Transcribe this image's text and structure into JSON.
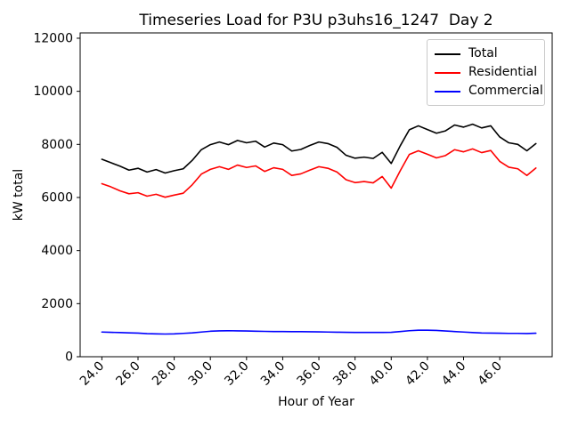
{
  "window": {
    "background": "#ffffff"
  },
  "chart_data": {
    "type": "line",
    "title": "Timeseries Load for P3U p3uhs16_1247  Day 2",
    "xlabel": "Hour of Year",
    "ylabel": "kW total",
    "xlim": [
      22.8,
      48.9
    ],
    "ylim": [
      0,
      12200
    ],
    "grid": false,
    "legend_position": "upper right",
    "xtick_values": [
      24,
      26,
      28,
      30,
      32,
      34,
      36,
      38,
      40,
      42,
      44,
      46
    ],
    "xtick_labels": [
      "24.0",
      "26.0",
      "28.0",
      "30.0",
      "32.0",
      "34.0",
      "36.0",
      "38.0",
      "40.0",
      "42.0",
      "44.0",
      "46.0"
    ],
    "ytick_values": [
      0,
      2000,
      4000,
      6000,
      8000,
      10000,
      12000
    ],
    "ytick_labels": [
      "0",
      "2000",
      "4000",
      "6000",
      "8000",
      "10000",
      "12000"
    ],
    "x": [
      24.0,
      24.5,
      25.0,
      25.5,
      26.0,
      26.5,
      27.0,
      27.5,
      28.0,
      28.5,
      29.0,
      29.5,
      30.0,
      30.5,
      31.0,
      31.5,
      32.0,
      32.5,
      33.0,
      33.5,
      34.0,
      34.5,
      35.0,
      35.5,
      36.0,
      36.5,
      37.0,
      37.5,
      38.0,
      38.5,
      39.0,
      39.5,
      40.0,
      40.5,
      41.0,
      41.5,
      42.0,
      42.5,
      43.0,
      43.5,
      44.0,
      44.5,
      45.0,
      45.5,
      46.0,
      46.5,
      47.0,
      47.5,
      48.0
    ],
    "series": [
      {
        "name": "Total",
        "color": "#000000",
        "values": [
          7440,
          7310,
          7180,
          7030,
          7100,
          6960,
          7050,
          6920,
          7010,
          7080,
          7400,
          7800,
          7990,
          8090,
          7990,
          8150,
          8060,
          8120,
          7900,
          8050,
          7990,
          7750,
          7810,
          7960,
          8090,
          8030,
          7890,
          7590,
          7480,
          7520,
          7470,
          7700,
          7280,
          7950,
          8550,
          8700,
          8560,
          8420,
          8510,
          8730,
          8650,
          8760,
          8620,
          8700,
          8280,
          8060,
          8000,
          7760,
          8030
        ]
      },
      {
        "name": "Residential",
        "color": "#ff0000",
        "values": [
          6520,
          6400,
          6250,
          6140,
          6180,
          6050,
          6120,
          6010,
          6090,
          6160,
          6480,
          6880,
          7060,
          7160,
          7060,
          7220,
          7130,
          7190,
          6980,
          7120,
          7060,
          6830,
          6890,
          7030,
          7160,
          7100,
          6960,
          6670,
          6560,
          6600,
          6550,
          6790,
          6350,
          7010,
          7620,
          7760,
          7630,
          7490,
          7580,
          7800,
          7720,
          7830,
          7690,
          7770,
          7360,
          7140,
          7080,
          6830,
          7110
        ]
      },
      {
        "name": "Commercial",
        "color": "#0000ff",
        "values": [
          930,
          920,
          910,
          900,
          890,
          870,
          860,
          855,
          860,
          880,
          900,
          930,
          960,
          975,
          980,
          975,
          970,
          960,
          955,
          950,
          950,
          945,
          945,
          940,
          935,
          930,
          925,
          920,
          915,
          915,
          915,
          915,
          920,
          950,
          980,
          1000,
          1000,
          990,
          970,
          950,
          930,
          910,
          895,
          890,
          885,
          880,
          880,
          875,
          885
        ]
      }
    ]
  }
}
